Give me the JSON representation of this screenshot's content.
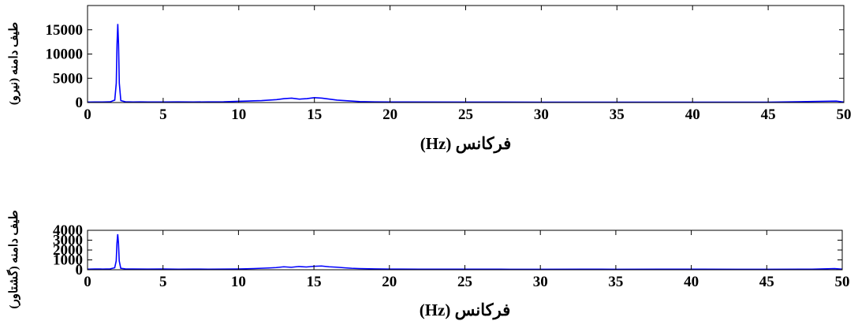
{
  "chart_data": [
    {
      "type": "line",
      "title": "",
      "xlabel": "فرکانس (Hz)",
      "ylabel": "طیف دامنه (نیرو)",
      "xlim": [
        0,
        50
      ],
      "ylim": [
        0,
        20000
      ],
      "xticks": [
        0,
        5,
        10,
        15,
        20,
        25,
        30,
        35,
        40,
        45,
        50
      ],
      "yticks": [
        0,
        5000,
        10000,
        15000
      ],
      "grid": false,
      "legend": "none",
      "color": "#0000ff",
      "series": [
        {
          "x": [
            0,
            0.5,
            1.0,
            1.5,
            1.8,
            1.9,
            1.95,
            2.0,
            2.05,
            2.1,
            2.2,
            2.5,
            3.0,
            3.5,
            4.0,
            5.0,
            6.0,
            7.0,
            8.0,
            9.0,
            10.0,
            10.5,
            11.0,
            11.5,
            12.0,
            12.5,
            13.0,
            13.5,
            14.0,
            14.5,
            15.0,
            15.5,
            16.0,
            16.5,
            17.0,
            17.5,
            18.0,
            19.0,
            20.0,
            25.0,
            30.0,
            35.0,
            40.0,
            45.0,
            49.5,
            50.0
          ],
          "y": [
            100,
            120,
            110,
            150,
            500,
            4000,
            12000,
            16200,
            12000,
            4000,
            400,
            150,
            120,
            130,
            110,
            120,
            130,
            110,
            140,
            160,
            250,
            300,
            350,
            400,
            500,
            600,
            800,
            900,
            700,
            800,
            1000,
            900,
            700,
            500,
            400,
            300,
            200,
            130,
            120,
            100,
            80,
            80,
            70,
            70,
            300,
            100
          ]
        }
      ]
    },
    {
      "type": "line",
      "title": "",
      "xlabel": "فرکانس (Hz)",
      "ylabel": "طیف دامنه (گشتاور)",
      "xlim": [
        0,
        50
      ],
      "ylim": [
        0,
        4000
      ],
      "xticks": [
        0,
        5,
        10,
        15,
        20,
        25,
        30,
        35,
        40,
        45,
        50
      ],
      "yticks": [
        0,
        1000,
        2000,
        3000,
        4000
      ],
      "grid": false,
      "legend": "none",
      "color": "#0000ff",
      "series": [
        {
          "x": [
            0,
            0.5,
            1.0,
            1.5,
            1.8,
            1.9,
            1.95,
            2.0,
            2.05,
            2.1,
            2.2,
            2.5,
            3.0,
            4.0,
            5.0,
            6.0,
            7.0,
            8.0,
            9.0,
            10.0,
            11.0,
            12.0,
            12.5,
            13.0,
            13.5,
            14.0,
            14.5,
            15.0,
            15.5,
            16.0,
            16.5,
            17.0,
            17.5,
            18.0,
            19.0,
            20.0,
            22.0,
            25.0,
            28.0,
            30.0,
            33.0,
            35.0,
            38.0,
            40.0,
            43.0,
            45.0,
            48.0,
            49.5,
            50.0
          ],
          "y": [
            60,
            80,
            70,
            90,
            200,
            900,
            2700,
            3600,
            2700,
            900,
            150,
            90,
            80,
            70,
            80,
            60,
            70,
            60,
            70,
            80,
            120,
            180,
            220,
            300,
            250,
            330,
            280,
            350,
            380,
            300,
            260,
            200,
            150,
            120,
            90,
            70,
            60,
            60,
            50,
            50,
            60,
            50,
            60,
            60,
            50,
            50,
            60,
            120,
            60
          ]
        }
      ]
    }
  ]
}
